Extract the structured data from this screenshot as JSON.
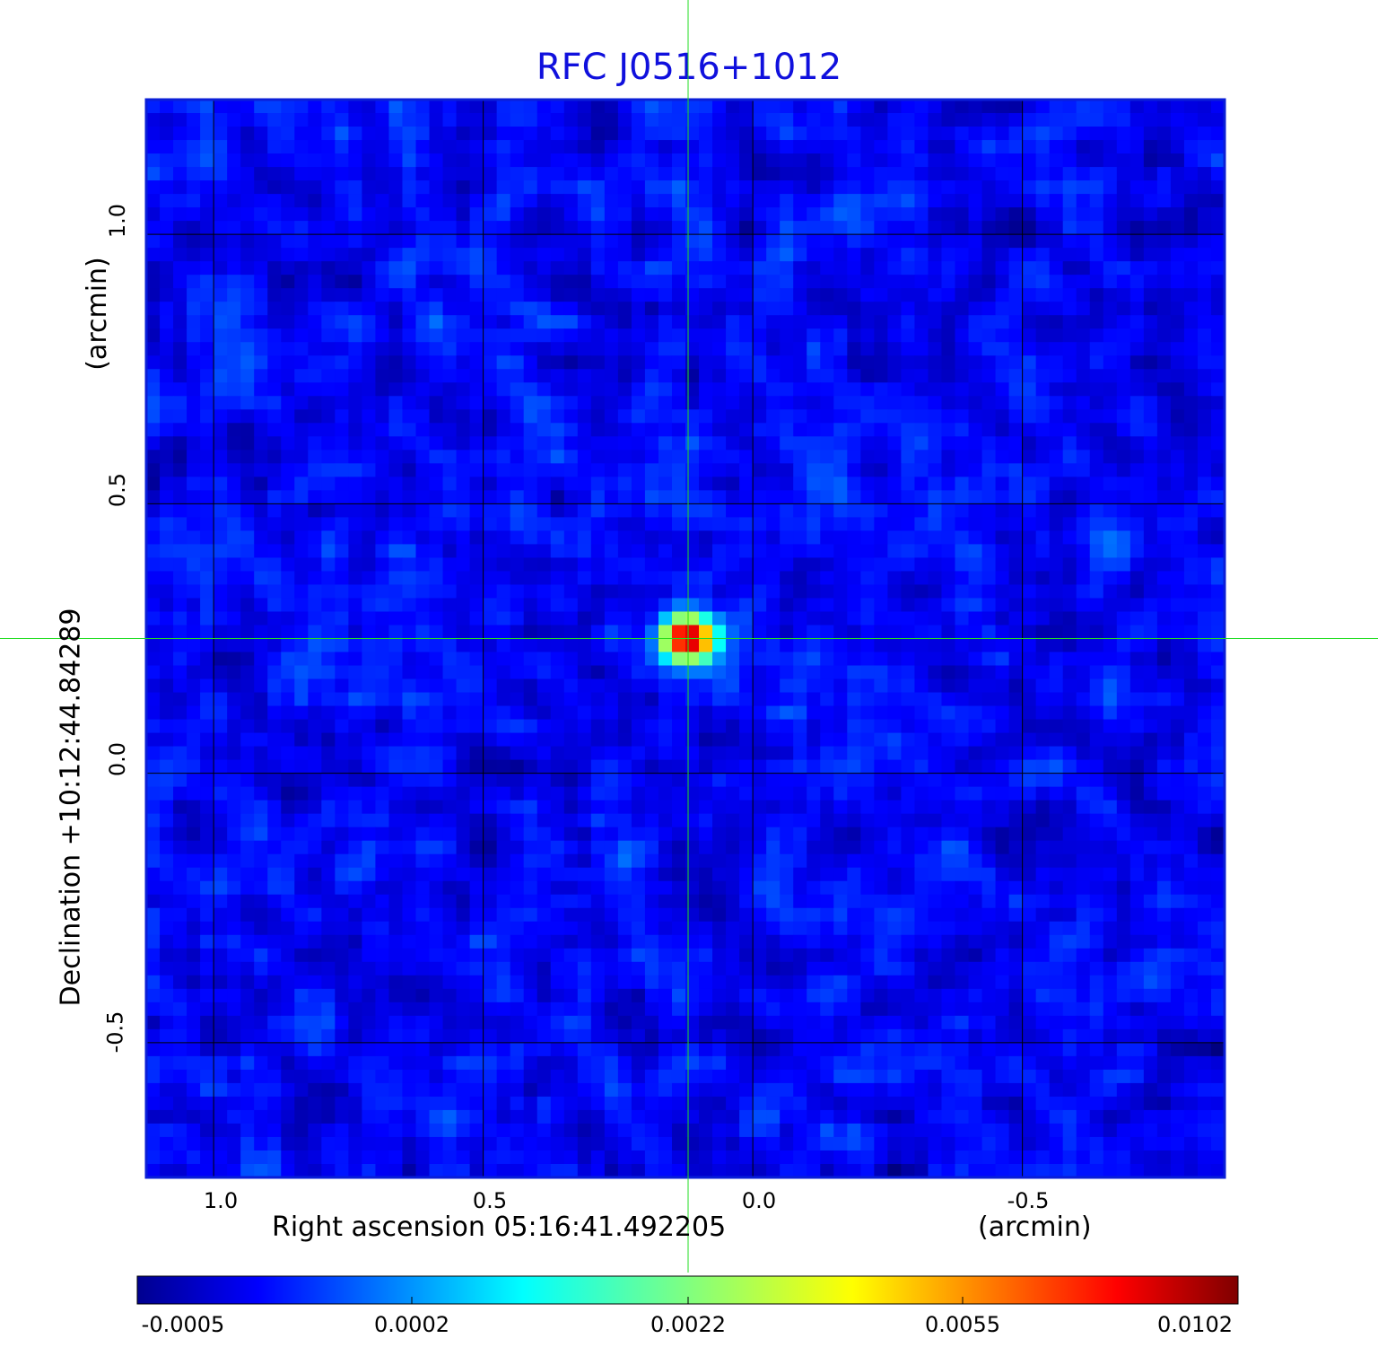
{
  "title": "RFC J0516+1012",
  "x_axis": {
    "label": "Right ascension  05:16:41.492205",
    "unit": "(arcmin)",
    "ticks": [
      "1.0",
      "0.5",
      "0.0",
      "-0.5"
    ]
  },
  "y_axis": {
    "label": "Declination  +10:12:44.84289",
    "unit": "(arcmin)",
    "ticks": [
      "1.0",
      "0.5",
      "0.0",
      "-0.5"
    ]
  },
  "colorbar": {
    "ticks": [
      "-0.0005",
      "0.0002",
      "0.0022",
      "0.0055",
      "0.0102"
    ],
    "colormap": "jet"
  },
  "colors": {
    "title": "#1010dd",
    "frame": "#0a1ed8",
    "grid": "#000000",
    "crosshair": "#22dd22"
  },
  "chart_data": {
    "type": "heatmap",
    "title": "RFC J0516+1012",
    "xlabel": "Right ascension  05:16:41.492205",
    "ylabel": "Declination  +10:12:44.84289",
    "units": "arcmin",
    "xlim": [
      1.125,
      -0.875
    ],
    "ylim": [
      -0.75,
      1.25
    ],
    "x_ticks": [
      1.0,
      0.5,
      0.0,
      -0.5
    ],
    "y_ticks": [
      1.0,
      0.5,
      0.0,
      -0.5
    ],
    "grid": true,
    "crosshair": {
      "x": 0.12,
      "y": 0.25
    },
    "source_peak": {
      "x": 0.12,
      "y": 0.25,
      "value": 0.0102
    },
    "colorbar_range": [
      -0.0005,
      0.0102
    ],
    "colorbar_ticks": [
      -0.0005,
      0.0002,
      0.0022,
      0.0055,
      0.0102
    ]
  }
}
